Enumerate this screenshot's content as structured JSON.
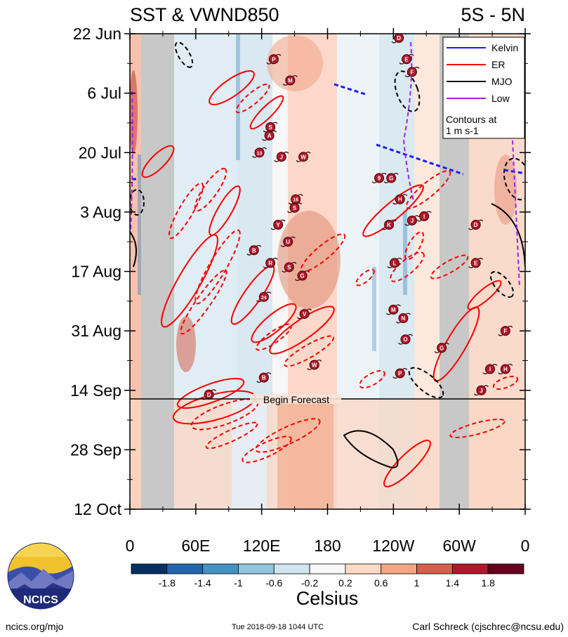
{
  "chart_data": {
    "type": "heatmap",
    "title": "SST & VWND850",
    "region": "5S - 5N",
    "y_tick_labels": [
      "22 Jun",
      "6 Jul",
      "20 Jul",
      "3 Aug",
      "17 Aug",
      "31 Aug",
      "14 Sep",
      "28 Sep",
      "12 Oct"
    ],
    "x_tick_labels": [
      "0",
      "60E",
      "120E",
      "180",
      "120W",
      "60W",
      "0"
    ],
    "x_range_deg_east": [
      0,
      360
    ],
    "y_range": [
      "2018-06-22",
      "2018-10-12"
    ],
    "forecast_start": "2018-09-16",
    "forecast_label": "Begin Forecast",
    "land_masks_deg_east": [
      [
        10,
        40
      ],
      [
        282,
        310
      ]
    ],
    "colorbar": {
      "title": "Celsius",
      "tick_labels": [
        "-1.8",
        "-1.4",
        "-1",
        "-0.6",
        "-0.2",
        "0.2",
        "0.6",
        "1",
        "1.4",
        "1.8"
      ],
      "colors": [
        "#053061",
        "#2166ac",
        "#4393c3",
        "#92c5de",
        "#d1e5f0",
        "#f7f7f7",
        "#fddbc7",
        "#f4a582",
        "#d6604d",
        "#b2182b",
        "#67001f"
      ]
    },
    "legend": {
      "position": "top-right",
      "entries": [
        {
          "name": "Kelvin",
          "color": "#1a1aff"
        },
        {
          "name": "ER",
          "color": "#ff0000"
        },
        {
          "name": "MJO",
          "color": "#000000"
        },
        {
          "name": "Low",
          "color": "#a020f0"
        }
      ],
      "note": [
        "Contours at",
        "1 m s-1"
      ]
    },
    "storm_markers": [
      {
        "label": "D",
        "lon": 245,
        "date": "2018-06-23"
      },
      {
        "label": "E",
        "lon": 252,
        "date": "2018-06-28"
      },
      {
        "label": "F",
        "lon": 257,
        "date": "2018-07-01"
      },
      {
        "label": "P",
        "lon": 131,
        "date": "2018-06-28"
      },
      {
        "label": "M",
        "lon": 146,
        "date": "2018-07-03"
      },
      {
        "label": "S",
        "lon": 128,
        "date": "2018-07-14"
      },
      {
        "label": "A",
        "lon": 127,
        "date": "2018-07-16"
      },
      {
        "label": "13",
        "lon": 118,
        "date": "2018-07-20"
      },
      {
        "label": "J",
        "lon": 138,
        "date": "2018-07-21"
      },
      {
        "label": "W",
        "lon": 158,
        "date": "2018-07-21"
      },
      {
        "label": "9",
        "lon": 227,
        "date": "2018-07-26"
      },
      {
        "label": "G",
        "lon": 238,
        "date": "2018-07-26"
      },
      {
        "label": "16",
        "lon": 151,
        "date": "2018-07-31"
      },
      {
        "label": "S",
        "lon": 150,
        "date": "2018-08-02"
      },
      {
        "label": "H",
        "lon": 246,
        "date": "2018-07-31"
      },
      {
        "label": "K",
        "lon": 236,
        "date": "2018-08-06"
      },
      {
        "label": "J",
        "lon": 257,
        "date": "2018-08-05"
      },
      {
        "label": "I",
        "lon": 268,
        "date": "2018-08-04"
      },
      {
        "label": "D",
        "lon": 315,
        "date": "2018-08-06"
      },
      {
        "label": "Y",
        "lon": 135,
        "date": "2018-08-06"
      },
      {
        "label": "B",
        "lon": 113,
        "date": "2018-08-12"
      },
      {
        "label": "U",
        "lon": 144,
        "date": "2018-08-10"
      },
      {
        "label": "R",
        "lon": 128,
        "date": "2018-08-15"
      },
      {
        "label": "S",
        "lon": 145,
        "date": "2018-08-16"
      },
      {
        "label": "G",
        "lon": 157,
        "date": "2018-08-18"
      },
      {
        "label": "L",
        "lon": 241,
        "date": "2018-08-15"
      },
      {
        "label": "E",
        "lon": 315,
        "date": "2018-08-15"
      },
      {
        "label": "24",
        "lon": 122,
        "date": "2018-08-23"
      },
      {
        "label": "V",
        "lon": 159,
        "date": "2018-08-27"
      },
      {
        "label": "M",
        "lon": 240,
        "date": "2018-08-26"
      },
      {
        "label": "N",
        "lon": 249,
        "date": "2018-08-28"
      },
      {
        "label": "O",
        "lon": 251,
        "date": "2018-09-02"
      },
      {
        "label": "G",
        "lon": 284,
        "date": "2018-09-04"
      },
      {
        "label": "F",
        "lon": 342,
        "date": "2018-08-31"
      },
      {
        "label": "W",
        "lon": 168,
        "date": "2018-09-08"
      },
      {
        "label": "B",
        "lon": 122,
        "date": "2018-09-11"
      },
      {
        "label": "P",
        "lon": 246,
        "date": "2018-09-10"
      },
      {
        "label": "H",
        "lon": 342,
        "date": "2018-09-09"
      },
      {
        "label": "I",
        "lon": 328,
        "date": "2018-09-09"
      },
      {
        "label": "J",
        "lon": 320,
        "date": "2018-09-14"
      },
      {
        "label": "D",
        "lon": 72,
        "date": "2018-09-15"
      }
    ]
  },
  "logo": {
    "text": "NCICS"
  },
  "footer": {
    "left": "ncics.org/mjo",
    "center": "Tue 2018-09-18 1044 UTC",
    "right": "Carl Schreck (cjschrec@ncsu.edu)"
  }
}
